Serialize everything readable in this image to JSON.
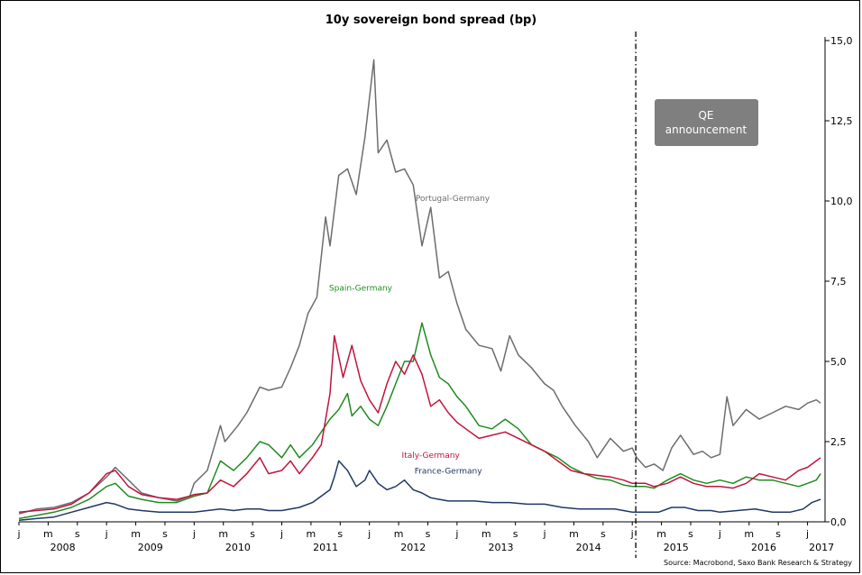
{
  "chart_data": {
    "type": "line",
    "title": "10y sovereign bond spread (bp)",
    "source": "Source: Macrobond, Saxo Bank Research & Strategy",
    "annotation": {
      "label_line1": "QE",
      "label_line2": "announcement",
      "date": 2015.04
    },
    "ylim": [
      0,
      15
    ],
    "y_ticks": [
      "0,0",
      "2,5",
      "5,0",
      "7,5",
      "10,0",
      "12,5",
      "15,0"
    ],
    "y_tick_values": [
      0,
      2.5,
      5,
      7.5,
      10,
      12.5,
      15
    ],
    "xlim": [
      2008.0,
      2017.2
    ],
    "year_labels": [
      "2008",
      "2009",
      "2010",
      "2011",
      "2012",
      "2013",
      "2014",
      "2015",
      "2016",
      "2017"
    ],
    "month_letters": [
      "j",
      "m",
      "s"
    ],
    "grid": false,
    "series": [
      {
        "name": "Portugal-Germany",
        "color": "#6d6d6d",
        "points": [
          [
            2008.0,
            0.25
          ],
          [
            2008.2,
            0.4
          ],
          [
            2008.4,
            0.45
          ],
          [
            2008.6,
            0.6
          ],
          [
            2008.8,
            0.9
          ],
          [
            2009.0,
            1.4
          ],
          [
            2009.1,
            1.7
          ],
          [
            2009.25,
            1.3
          ],
          [
            2009.4,
            0.9
          ],
          [
            2009.6,
            0.75
          ],
          [
            2009.8,
            0.65
          ],
          [
            2009.95,
            0.8
          ],
          [
            2010.0,
            1.2
          ],
          [
            2010.15,
            1.6
          ],
          [
            2010.3,
            3.0
          ],
          [
            2010.35,
            2.5
          ],
          [
            2010.5,
            3.0
          ],
          [
            2010.6,
            3.4
          ],
          [
            2010.75,
            4.2
          ],
          [
            2010.85,
            4.1
          ],
          [
            2011.0,
            4.2
          ],
          [
            2011.1,
            4.8
          ],
          [
            2011.2,
            5.5
          ],
          [
            2011.3,
            6.5
          ],
          [
            2011.4,
            7.0
          ],
          [
            2011.5,
            9.5
          ],
          [
            2011.55,
            8.6
          ],
          [
            2011.65,
            10.8
          ],
          [
            2011.75,
            11.0
          ],
          [
            2011.85,
            10.2
          ],
          [
            2011.95,
            12.0
          ],
          [
            2012.05,
            14.4
          ],
          [
            2012.1,
            11.5
          ],
          [
            2012.2,
            11.9
          ],
          [
            2012.3,
            10.9
          ],
          [
            2012.4,
            11.0
          ],
          [
            2012.5,
            10.5
          ],
          [
            2012.6,
            8.6
          ],
          [
            2012.7,
            9.8
          ],
          [
            2012.8,
            7.6
          ],
          [
            2012.9,
            7.8
          ],
          [
            2013.0,
            6.8
          ],
          [
            2013.1,
            6.0
          ],
          [
            2013.25,
            5.5
          ],
          [
            2013.4,
            5.4
          ],
          [
            2013.5,
            4.7
          ],
          [
            2013.6,
            5.8
          ],
          [
            2013.7,
            5.2
          ],
          [
            2013.85,
            4.8
          ],
          [
            2014.0,
            4.3
          ],
          [
            2014.1,
            4.1
          ],
          [
            2014.2,
            3.6
          ],
          [
            2014.35,
            3.0
          ],
          [
            2014.5,
            2.5
          ],
          [
            2014.6,
            2.0
          ],
          [
            2014.75,
            2.6
          ],
          [
            2014.9,
            2.2
          ],
          [
            2015.0,
            2.3
          ],
          [
            2015.05,
            2.0
          ],
          [
            2015.15,
            1.7
          ],
          [
            2015.25,
            1.8
          ],
          [
            2015.35,
            1.6
          ],
          [
            2015.45,
            2.3
          ],
          [
            2015.55,
            2.7
          ],
          [
            2015.7,
            2.1
          ],
          [
            2015.8,
            2.2
          ],
          [
            2015.9,
            2.0
          ],
          [
            2016.0,
            2.1
          ],
          [
            2016.08,
            3.9
          ],
          [
            2016.15,
            3.0
          ],
          [
            2016.3,
            3.5
          ],
          [
            2016.45,
            3.2
          ],
          [
            2016.6,
            3.4
          ],
          [
            2016.75,
            3.6
          ],
          [
            2016.9,
            3.5
          ],
          [
            2017.0,
            3.7
          ],
          [
            2017.1,
            3.8
          ],
          [
            2017.15,
            3.7
          ]
        ]
      },
      {
        "name": "Spain-Germany",
        "color": "#1f8c1f",
        "points": [
          [
            2008.0,
            0.1
          ],
          [
            2008.2,
            0.2
          ],
          [
            2008.4,
            0.3
          ],
          [
            2008.6,
            0.45
          ],
          [
            2008.8,
            0.7
          ],
          [
            2009.0,
            1.1
          ],
          [
            2009.1,
            1.2
          ],
          [
            2009.25,
            0.8
          ],
          [
            2009.4,
            0.7
          ],
          [
            2009.6,
            0.6
          ],
          [
            2009.8,
            0.6
          ],
          [
            2009.95,
            0.75
          ],
          [
            2010.0,
            0.8
          ],
          [
            2010.15,
            0.9
          ],
          [
            2010.3,
            1.9
          ],
          [
            2010.45,
            1.6
          ],
          [
            2010.6,
            2.0
          ],
          [
            2010.75,
            2.5
          ],
          [
            2010.85,
            2.4
          ],
          [
            2011.0,
            2.0
          ],
          [
            2011.1,
            2.4
          ],
          [
            2011.2,
            2.0
          ],
          [
            2011.35,
            2.4
          ],
          [
            2011.45,
            2.8
          ],
          [
            2011.55,
            3.2
          ],
          [
            2011.65,
            3.5
          ],
          [
            2011.75,
            4.0
          ],
          [
            2011.8,
            3.3
          ],
          [
            2011.9,
            3.6
          ],
          [
            2012.0,
            3.2
          ],
          [
            2012.1,
            3.0
          ],
          [
            2012.2,
            3.6
          ],
          [
            2012.3,
            4.3
          ],
          [
            2012.4,
            5.0
          ],
          [
            2012.5,
            5.0
          ],
          [
            2012.6,
            6.2
          ],
          [
            2012.7,
            5.2
          ],
          [
            2012.8,
            4.5
          ],
          [
            2012.9,
            4.3
          ],
          [
            2013.0,
            3.9
          ],
          [
            2013.1,
            3.6
          ],
          [
            2013.25,
            3.0
          ],
          [
            2013.4,
            2.9
          ],
          [
            2013.55,
            3.2
          ],
          [
            2013.7,
            2.9
          ],
          [
            2013.85,
            2.4
          ],
          [
            2014.0,
            2.2
          ],
          [
            2014.15,
            2.0
          ],
          [
            2014.3,
            1.7
          ],
          [
            2014.45,
            1.5
          ],
          [
            2014.6,
            1.35
          ],
          [
            2014.75,
            1.3
          ],
          [
            2014.9,
            1.15
          ],
          [
            2015.0,
            1.1
          ],
          [
            2015.15,
            1.1
          ],
          [
            2015.25,
            1.05
          ],
          [
            2015.4,
            1.3
          ],
          [
            2015.55,
            1.5
          ],
          [
            2015.7,
            1.3
          ],
          [
            2015.85,
            1.2
          ],
          [
            2016.0,
            1.3
          ],
          [
            2016.15,
            1.2
          ],
          [
            2016.3,
            1.4
          ],
          [
            2016.45,
            1.3
          ],
          [
            2016.6,
            1.3
          ],
          [
            2016.75,
            1.2
          ],
          [
            2016.9,
            1.1
          ],
          [
            2017.0,
            1.2
          ],
          [
            2017.1,
            1.3
          ],
          [
            2017.15,
            1.5
          ]
        ]
      },
      {
        "name": "Italy-Germany",
        "color": "#c0143c",
        "points": [
          [
            2008.0,
            0.3
          ],
          [
            2008.2,
            0.35
          ],
          [
            2008.4,
            0.4
          ],
          [
            2008.6,
            0.55
          ],
          [
            2008.8,
            0.9
          ],
          [
            2009.0,
            1.5
          ],
          [
            2009.1,
            1.6
          ],
          [
            2009.25,
            1.1
          ],
          [
            2009.4,
            0.85
          ],
          [
            2009.6,
            0.75
          ],
          [
            2009.8,
            0.7
          ],
          [
            2009.95,
            0.8
          ],
          [
            2010.0,
            0.85
          ],
          [
            2010.15,
            0.9
          ],
          [
            2010.3,
            1.3
          ],
          [
            2010.45,
            1.1
          ],
          [
            2010.6,
            1.5
          ],
          [
            2010.75,
            2.0
          ],
          [
            2010.85,
            1.5
          ],
          [
            2011.0,
            1.6
          ],
          [
            2011.1,
            1.9
          ],
          [
            2011.2,
            1.5
          ],
          [
            2011.35,
            2.0
          ],
          [
            2011.45,
            2.4
          ],
          [
            2011.55,
            4.0
          ],
          [
            2011.6,
            5.8
          ],
          [
            2011.7,
            4.5
          ],
          [
            2011.8,
            5.5
          ],
          [
            2011.9,
            4.4
          ],
          [
            2012.0,
            3.8
          ],
          [
            2012.1,
            3.4
          ],
          [
            2012.2,
            4.3
          ],
          [
            2012.3,
            5.0
          ],
          [
            2012.4,
            4.6
          ],
          [
            2012.5,
            5.2
          ],
          [
            2012.6,
            4.6
          ],
          [
            2012.7,
            3.6
          ],
          [
            2012.8,
            3.8
          ],
          [
            2012.9,
            3.4
          ],
          [
            2013.0,
            3.1
          ],
          [
            2013.1,
            2.9
          ],
          [
            2013.25,
            2.6
          ],
          [
            2013.4,
            2.7
          ],
          [
            2013.55,
            2.8
          ],
          [
            2013.7,
            2.6
          ],
          [
            2013.85,
            2.4
          ],
          [
            2014.0,
            2.2
          ],
          [
            2014.15,
            1.9
          ],
          [
            2014.3,
            1.6
          ],
          [
            2014.45,
            1.5
          ],
          [
            2014.6,
            1.45
          ],
          [
            2014.75,
            1.4
          ],
          [
            2014.9,
            1.3
          ],
          [
            2015.0,
            1.2
          ],
          [
            2015.15,
            1.2
          ],
          [
            2015.25,
            1.1
          ],
          [
            2015.4,
            1.2
          ],
          [
            2015.55,
            1.4
          ],
          [
            2015.7,
            1.2
          ],
          [
            2015.85,
            1.1
          ],
          [
            2016.0,
            1.1
          ],
          [
            2016.15,
            1.05
          ],
          [
            2016.3,
            1.2
          ],
          [
            2016.45,
            1.5
          ],
          [
            2016.6,
            1.4
          ],
          [
            2016.75,
            1.3
          ],
          [
            2016.9,
            1.6
          ],
          [
            2017.0,
            1.7
          ],
          [
            2017.1,
            1.9
          ],
          [
            2017.15,
            2.0
          ]
        ]
      },
      {
        "name": "France-Germany",
        "color": "#1f3864",
        "points": [
          [
            2008.0,
            0.05
          ],
          [
            2008.2,
            0.1
          ],
          [
            2008.4,
            0.15
          ],
          [
            2008.6,
            0.3
          ],
          [
            2008.8,
            0.45
          ],
          [
            2009.0,
            0.6
          ],
          [
            2009.1,
            0.55
          ],
          [
            2009.25,
            0.4
          ],
          [
            2009.4,
            0.35
          ],
          [
            2009.6,
            0.3
          ],
          [
            2009.8,
            0.3
          ],
          [
            2009.95,
            0.3
          ],
          [
            2010.0,
            0.3
          ],
          [
            2010.15,
            0.35
          ],
          [
            2010.3,
            0.4
          ],
          [
            2010.45,
            0.35
          ],
          [
            2010.6,
            0.4
          ],
          [
            2010.75,
            0.4
          ],
          [
            2010.85,
            0.35
          ],
          [
            2011.0,
            0.35
          ],
          [
            2011.1,
            0.4
          ],
          [
            2011.2,
            0.45
          ],
          [
            2011.35,
            0.6
          ],
          [
            2011.45,
            0.8
          ],
          [
            2011.55,
            1.0
          ],
          [
            2011.6,
            1.4
          ],
          [
            2011.65,
            1.9
          ],
          [
            2011.75,
            1.6
          ],
          [
            2011.85,
            1.1
          ],
          [
            2011.95,
            1.3
          ],
          [
            2012.0,
            1.6
          ],
          [
            2012.1,
            1.2
          ],
          [
            2012.2,
            1.0
          ],
          [
            2012.3,
            1.1
          ],
          [
            2012.4,
            1.3
          ],
          [
            2012.5,
            1.0
          ],
          [
            2012.6,
            0.9
          ],
          [
            2012.7,
            0.75
          ],
          [
            2012.8,
            0.7
          ],
          [
            2012.9,
            0.65
          ],
          [
            2013.0,
            0.65
          ],
          [
            2013.2,
            0.65
          ],
          [
            2013.4,
            0.6
          ],
          [
            2013.6,
            0.6
          ],
          [
            2013.8,
            0.55
          ],
          [
            2014.0,
            0.55
          ],
          [
            2014.2,
            0.45
          ],
          [
            2014.4,
            0.4
          ],
          [
            2014.6,
            0.4
          ],
          [
            2014.8,
            0.4
          ],
          [
            2015.0,
            0.3
          ],
          [
            2015.15,
            0.3
          ],
          [
            2015.3,
            0.3
          ],
          [
            2015.45,
            0.45
          ],
          [
            2015.6,
            0.45
          ],
          [
            2015.75,
            0.35
          ],
          [
            2015.9,
            0.35
          ],
          [
            2016.0,
            0.3
          ],
          [
            2016.2,
            0.35
          ],
          [
            2016.4,
            0.4
          ],
          [
            2016.6,
            0.3
          ],
          [
            2016.8,
            0.3
          ],
          [
            2016.95,
            0.4
          ],
          [
            2017.05,
            0.6
          ],
          [
            2017.15,
            0.7
          ]
        ]
      }
    ],
    "series_labels": [
      {
        "series": "Portugal-Germany",
        "x": 2012.95,
        "y": 10.0
      },
      {
        "series": "Spain-Germany",
        "x": 2011.9,
        "y": 7.2
      },
      {
        "series": "Italy-Germany",
        "x": 2012.7,
        "y": 2.0
      },
      {
        "series": "France-Germany",
        "x": 2012.9,
        "y": 1.5
      }
    ]
  }
}
